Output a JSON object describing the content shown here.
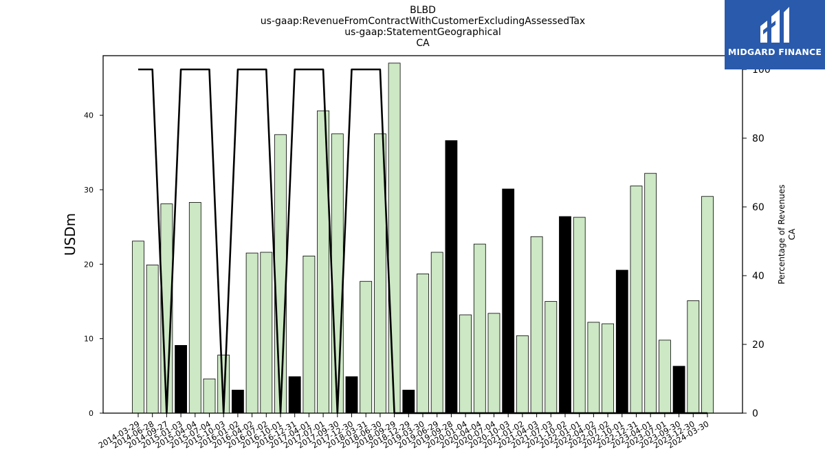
{
  "chart_data": {
    "type": "bar",
    "title_lines": [
      "BLBD",
      "us-gaap:RevenueFromContractWithCustomerExcludingAssessedTax",
      "us-gaap:StatementGeographical",
      "CA"
    ],
    "ylabel": "USDm",
    "y2label_lines": [
      "Percentage of Revenues",
      "CA"
    ],
    "ylim": [
      0,
      48
    ],
    "y2lim": [
      0,
      104
    ],
    "yticks": [
      0,
      10,
      20,
      30,
      40
    ],
    "y2ticks": [
      0,
      20,
      40,
      60,
      80,
      100
    ],
    "grid": false,
    "categories": [
      "2014-03-29",
      "2014-06-28",
      "2014-09-27",
      "2015-01-03",
      "2015-04-04",
      "2015-07-04",
      "2015-10-03",
      "2016-01-02",
      "2016-04-02",
      "2016-07-02",
      "2016-10-01",
      "2016-12-31",
      "2017-04-01",
      "2017-07-01",
      "2017-09-30",
      "2017-12-30",
      "2018-03-31",
      "2018-06-30",
      "2018-09-29",
      "2018-12-29",
      "2019-03-30",
      "2019-06-29",
      "2019-09-28",
      "2020-01-04",
      "2020-04-04",
      "2020-07-04",
      "2020-10-03",
      "2021-01-02",
      "2021-04-03",
      "2021-07-03",
      "2021-10-02",
      "2022-01-01",
      "2022-04-02",
      "2022-07-02",
      "2022-10-01",
      "2022-12-31",
      "2023-04-01",
      "2023-07-01",
      "2023-09-30",
      "2023-12-30",
      "2024-03-30"
    ],
    "values": [
      23.1,
      19.9,
      28.1,
      9.1,
      28.3,
      4.6,
      7.8,
      3.1,
      21.5,
      21.6,
      37.4,
      4.9,
      21.1,
      40.6,
      37.5,
      4.9,
      17.7,
      37.5,
      47.0,
      3.1,
      18.7,
      21.6,
      36.6,
      13.2,
      22.7,
      13.4,
      30.1,
      10.4,
      23.7,
      15.0,
      26.4,
      26.3,
      12.2,
      12.0,
      19.2,
      30.5,
      32.2,
      9.8,
      6.3,
      15.1,
      29.1
    ],
    "bar_colors": {
      "regular": "#cce8c4",
      "highlight": "#000000"
    },
    "highlight_categories": [
      "2015-01-03",
      "2016-01-02",
      "2016-12-31",
      "2017-12-30",
      "2018-12-29",
      "2019-09-28",
      "2020-10-03",
      "2021-10-02",
      "2022-10-01",
      "2023-09-30"
    ],
    "percentage_series": [
      100,
      100,
      0,
      100,
      100,
      100,
      0,
      100,
      100,
      100,
      0,
      100,
      100,
      100,
      0,
      100,
      100,
      100,
      0,
      0,
      0,
      0,
      0,
      0,
      0,
      0,
      0,
      0,
      0,
      0,
      0,
      0,
      0,
      0,
      0,
      0,
      0,
      0,
      0,
      0,
      0
    ]
  },
  "logo": {
    "text": "MIDGARD FINANCE"
  }
}
